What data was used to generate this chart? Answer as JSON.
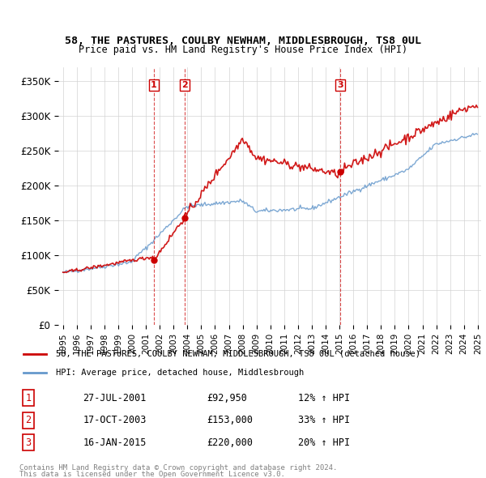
{
  "title": "58, THE PASTURES, COULBY NEWHAM, MIDDLESBROUGH, TS8 0UL",
  "subtitle": "Price paid vs. HM Land Registry's House Price Index (HPI)",
  "ylim": [
    0,
    370000
  ],
  "yticks": [
    0,
    50000,
    100000,
    150000,
    200000,
    250000,
    300000,
    350000
  ],
  "ytick_labels": [
    "£0",
    "£50K",
    "£100K",
    "£150K",
    "£200K",
    "£250K",
    "£300K",
    "£350K"
  ],
  "sale_dates": [
    "2001-07-27",
    "2003-10-17",
    "2015-01-16"
  ],
  "sale_prices": [
    92950,
    153000,
    220000
  ],
  "sale_labels": [
    "1",
    "2",
    "3"
  ],
  "sale_pct": [
    "12%",
    "33%",
    "20%"
  ],
  "sale_date_strs": [
    "27-JUL-2001",
    "17-OCT-2003",
    "16-JAN-2015"
  ],
  "sale_price_strs": [
    "£92,950",
    "£153,000",
    "£220,000"
  ],
  "red_color": "#cc0000",
  "blue_color": "#6699cc",
  "vline_color": "#cc0000",
  "legend_label_red": "58, THE PASTURES, COULBY NEWHAM, MIDDLESBROUGH, TS8 0UL (detached house)",
  "legend_label_blue": "HPI: Average price, detached house, Middlesbrough",
  "footer1": "Contains HM Land Registry data © Crown copyright and database right 2024.",
  "footer2": "This data is licensed under the Open Government Licence v3.0."
}
